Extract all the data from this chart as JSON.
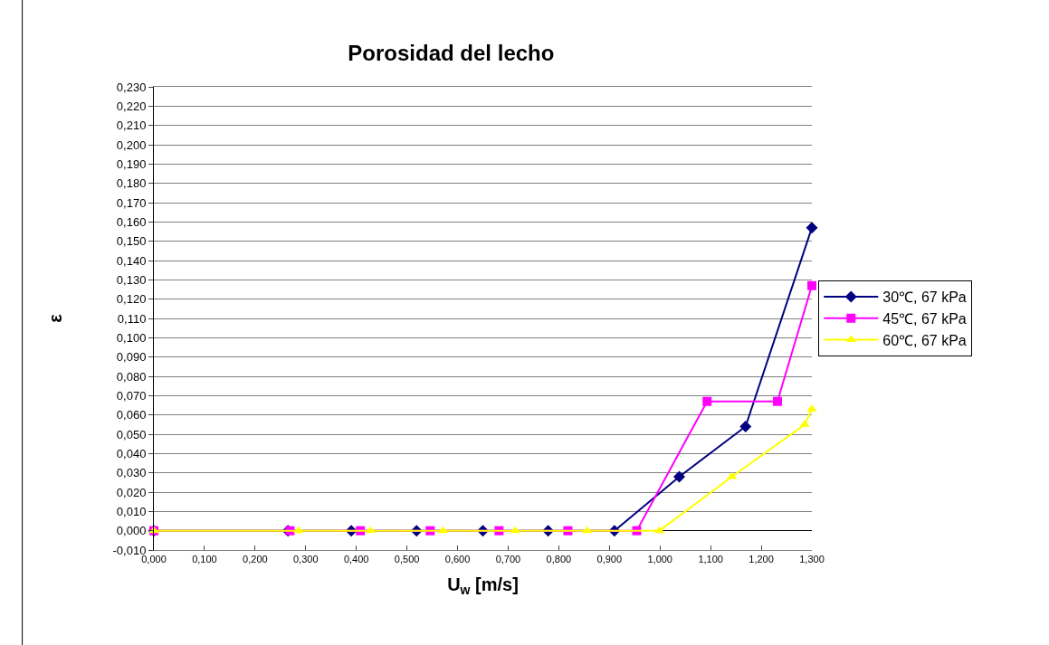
{
  "chart_data": {
    "type": "line",
    "title": "Porosidad del lecho",
    "xlabel": "U$_{w}$ [m/s]",
    "ylabel": "ε",
    "xlim": [
      0,
      1.3
    ],
    "ylim": [
      -0.01,
      0.23
    ],
    "xticks": [
      {
        "value": 0,
        "label": "0,000"
      },
      {
        "value": 0.1,
        "label": "0,100"
      },
      {
        "value": 0.2,
        "label": "0,200"
      },
      {
        "value": 0.3,
        "label": "0,300"
      },
      {
        "value": 0.4,
        "label": "0,400"
      },
      {
        "value": 0.5,
        "label": "0,500"
      },
      {
        "value": 0.6,
        "label": "0,600"
      },
      {
        "value": 0.7,
        "label": "0,700"
      },
      {
        "value": 0.8,
        "label": "0,800"
      },
      {
        "value": 0.9,
        "label": "0,900"
      },
      {
        "value": 1.0,
        "label": "1,000"
      },
      {
        "value": 1.1,
        "label": "1,100"
      },
      {
        "value": 1.2,
        "label": "1,200"
      },
      {
        "value": 1.3,
        "label": "1,300"
      }
    ],
    "yticks": [
      {
        "value": -0.01,
        "label": "-0,010"
      },
      {
        "value": 0,
        "label": "0,000"
      },
      {
        "value": 0.01,
        "label": "0,010"
      },
      {
        "value": 0.02,
        "label": "0,020"
      },
      {
        "value": 0.03,
        "label": "0,030"
      },
      {
        "value": 0.04,
        "label": "0,040"
      },
      {
        "value": 0.05,
        "label": "0,050"
      },
      {
        "value": 0.06,
        "label": "0,060"
      },
      {
        "value": 0.07,
        "label": "0,070"
      },
      {
        "value": 0.08,
        "label": "0,080"
      },
      {
        "value": 0.09,
        "label": "0,090"
      },
      {
        "value": 0.1,
        "label": "0,100"
      },
      {
        "value": 0.11,
        "label": "0,110"
      },
      {
        "value": 0.12,
        "label": "0,120"
      },
      {
        "value": 0.13,
        "label": "0,130"
      },
      {
        "value": 0.14,
        "label": "0,140"
      },
      {
        "value": 0.15,
        "label": "0,150"
      },
      {
        "value": 0.16,
        "label": "0,160"
      },
      {
        "value": 0.17,
        "label": "0,170"
      },
      {
        "value": 0.18,
        "label": "0,180"
      },
      {
        "value": 0.19,
        "label": "0,190"
      },
      {
        "value": 0.2,
        "label": "0,200"
      },
      {
        "value": 0.21,
        "label": "0,210"
      },
      {
        "value": 0.22,
        "label": "0,220"
      },
      {
        "value": 0.23,
        "label": "0,230"
      }
    ],
    "grid": "y",
    "legend": "right",
    "series": [
      {
        "name": "30℃, 67 kPa",
        "color": "#000080",
        "marker": "diamond",
        "x": [
          0,
          0.265,
          0.39,
          0.519,
          0.65,
          0.779,
          0.91,
          1.038,
          1.169,
          1.3
        ],
        "values": [
          0,
          0,
          0,
          0,
          0,
          0,
          0,
          0.028,
          0.054,
          0.157
        ]
      },
      {
        "name": "45℃, 67 kPa",
        "color": "#ff00ff",
        "marker": "square",
        "x": [
          0,
          0.269,
          0.408,
          0.546,
          0.682,
          0.818,
          0.954,
          1.093,
          1.232,
          1.3
        ],
        "values": [
          0,
          0,
          0,
          0,
          0,
          0,
          0,
          0.067,
          0.067,
          0.127
        ]
      },
      {
        "name": "60℃, 67 kPa",
        "color": "#ffff00",
        "marker": "triangle",
        "x": [
          0,
          0.286,
          0.428,
          0.571,
          0.714,
          0.856,
          0.999,
          1.142,
          1.286,
          1.3
        ],
        "values": [
          0,
          0,
          0,
          0,
          0,
          0,
          0,
          0.028,
          0.055,
          0.063
        ]
      }
    ]
  }
}
